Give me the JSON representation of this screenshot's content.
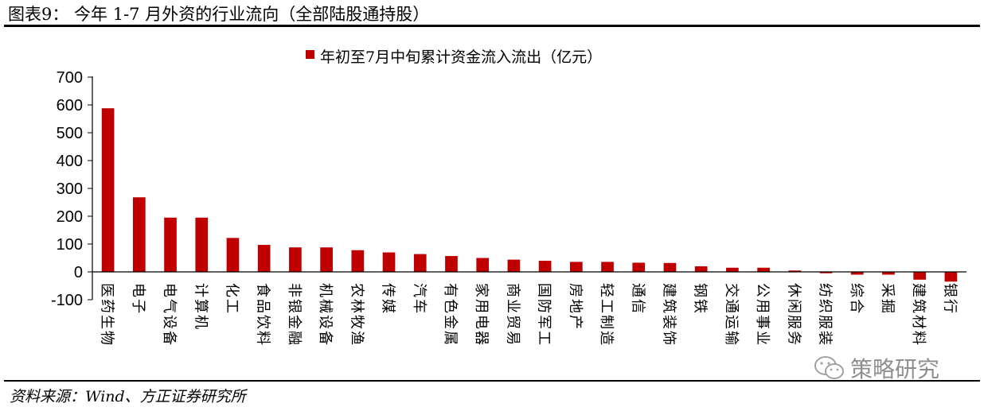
{
  "figure": {
    "title": "图表9：  今年 1-7 月外资的行业流向（全部陆股通持股）",
    "source": "资料来源：Wind、方正证券研究所",
    "watermark": "策略研究",
    "watermark_icon": "wechat-icon"
  },
  "chart_data": {
    "type": "bar",
    "categories": [
      "医药生物",
      "电子",
      "电气设备",
      "计算机",
      "化工",
      "食品饮料",
      "非银金融",
      "机械设备",
      "农林牧渔",
      "传媒",
      "汽车",
      "有色金属",
      "家用电器",
      "商业贸易",
      "国防军工",
      "房地产",
      "轻工制造",
      "通信",
      "建筑装饰",
      "钢铁",
      "交通运输",
      "公用事业",
      "休闲服务",
      "纺织服装",
      "综合",
      "采掘",
      "建筑材料",
      "银行"
    ],
    "series": [
      {
        "name": "年初至7月中旬累计资金流入流出（亿元）",
        "color": "#C00000",
        "values": [
          588,
          268,
          195,
          195,
          122,
          97,
          88,
          88,
          78,
          70,
          64,
          57,
          50,
          44,
          40,
          36,
          36,
          33,
          32,
          20,
          15,
          15,
          5,
          -5,
          -10,
          -10,
          -28,
          -35
        ]
      }
    ],
    "ylim": [
      -100,
      700
    ],
    "yticks": [
      -100,
      0,
      100,
      200,
      300,
      400,
      500,
      600,
      700
    ],
    "ytick_labels": [
      "-100",
      "0",
      "100",
      "200",
      "300",
      "400",
      "500",
      "600",
      "700"
    ],
    "grid": false,
    "legend": "top-center"
  }
}
